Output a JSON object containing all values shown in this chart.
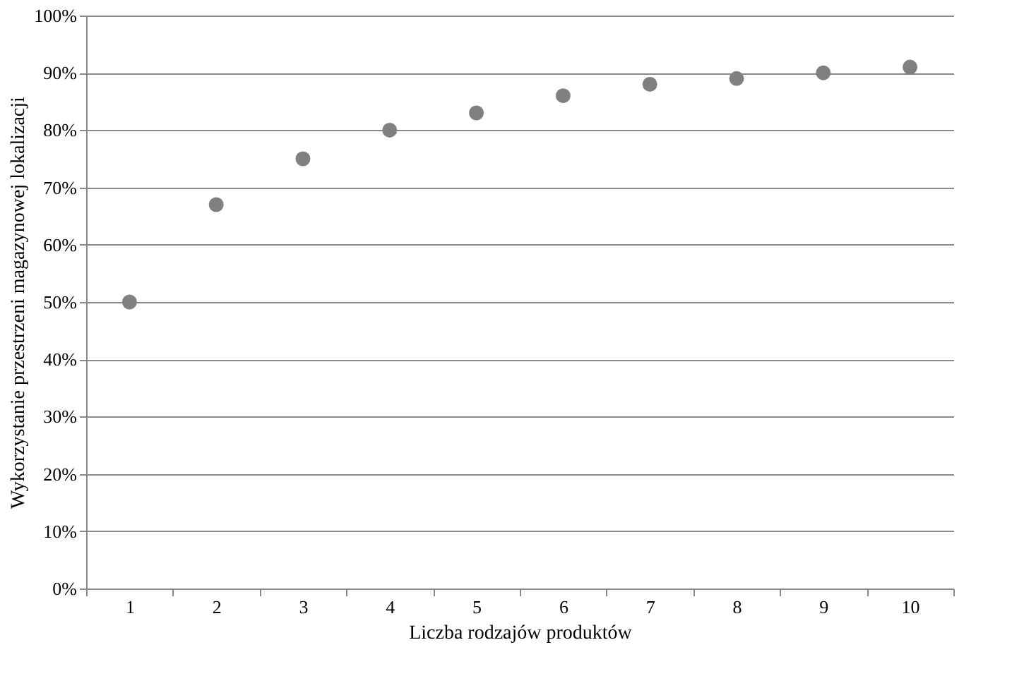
{
  "chart_data": {
    "type": "scatter",
    "xlabel": "Liczba  rodzajów produktów",
    "ylabel": "Wykorzystanie przestrzeni magazynowej lokalizacji",
    "categories": [
      "1",
      "2",
      "3",
      "4",
      "5",
      "6",
      "7",
      "8",
      "9",
      "10"
    ],
    "series": [
      {
        "color": "#808080",
        "values": [
          50,
          67,
          75,
          80,
          83,
          86,
          88,
          89,
          90,
          91
        ]
      }
    ],
    "ylim": [
      0,
      100
    ],
    "yticks": [
      {
        "value": 0,
        "label": "0%"
      },
      {
        "value": 10,
        "label": "10%"
      },
      {
        "value": 20,
        "label": "20%"
      },
      {
        "value": 30,
        "label": "30%"
      },
      {
        "value": 40,
        "label": "40%"
      },
      {
        "value": 50,
        "label": "50%"
      },
      {
        "value": 60,
        "label": "60%"
      },
      {
        "value": 70,
        "label": "70%"
      },
      {
        "value": 80,
        "label": "80%"
      },
      {
        "value": 90,
        "label": "90%"
      },
      {
        "value": 100,
        "label": "100%"
      }
    ],
    "grid": "y",
    "marker": "circle"
  }
}
